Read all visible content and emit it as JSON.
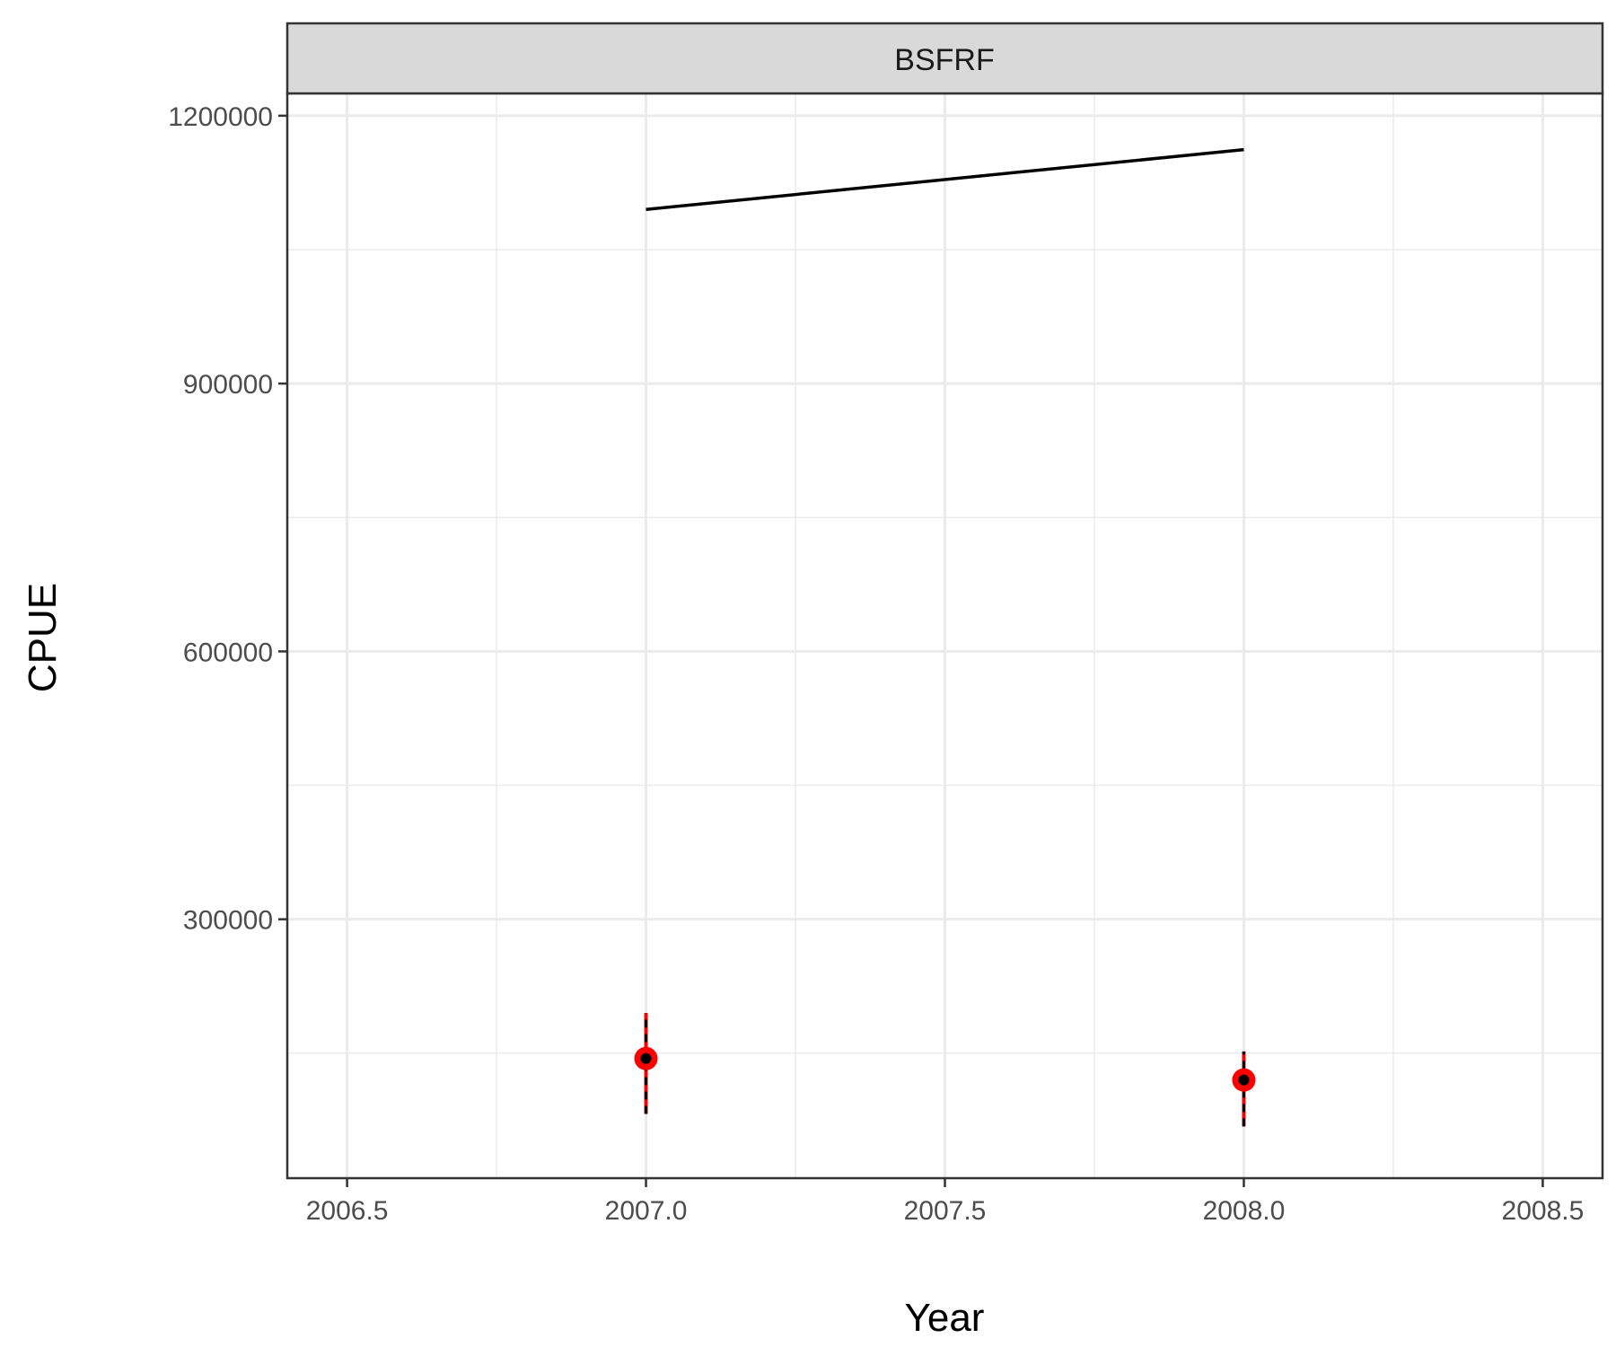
{
  "chart_data": {
    "type": "line",
    "panel": "BSFRF",
    "xlabel": "Year",
    "ylabel": "CPUE",
    "xlim": [
      2006.4,
      2008.6
    ],
    "ylim": [
      10000,
      1225000
    ],
    "x_ticks": [
      2006.5,
      2007.0,
      2007.5,
      2008.0,
      2008.5
    ],
    "x_tick_labels": [
      "2006.5",
      "2007.0",
      "2007.5",
      "2008.0",
      "2008.5"
    ],
    "y_ticks": [
      300000,
      600000,
      900000,
      1200000
    ],
    "y_tick_labels": [
      "300000",
      "600000",
      "900000",
      "1200000"
    ],
    "grid": true,
    "series": [
      {
        "kind": "line",
        "color": "#000000",
        "x": [
          2007.0,
          2008.0
        ],
        "y": [
          1095000,
          1162000
        ]
      },
      {
        "kind": "points_errorbars",
        "color": "#ff0000",
        "inner_color": "#000000",
        "x": [
          2007.0,
          2008.0
        ],
        "y": [
          144000,
          120000
        ],
        "ymin": [
          82000,
          68000
        ],
        "ymax": [
          195000,
          152000
        ]
      }
    ]
  }
}
